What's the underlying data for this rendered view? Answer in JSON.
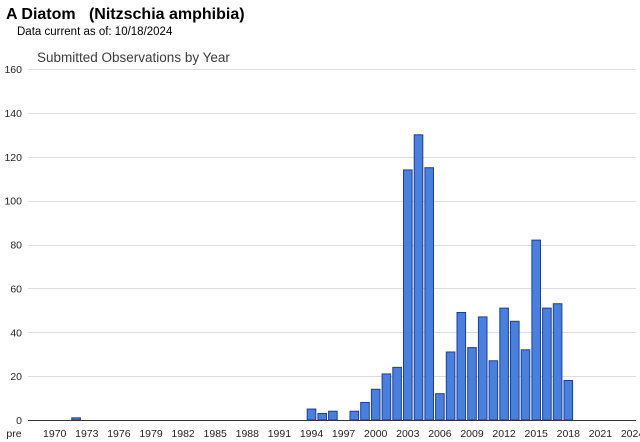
{
  "header": {
    "species_title": "A Diatom   (Nitzschia amphibia)",
    "data_current": "Data current as of: 10/18/2024"
  },
  "chart_data": {
    "type": "bar",
    "title": "Submitted Observations by Year",
    "xlabel": "",
    "ylabel": "",
    "ylim": [
      0,
      160
    ],
    "y_ticks": [
      0,
      20,
      40,
      60,
      80,
      100,
      120,
      140,
      160
    ],
    "grid": true,
    "legend": "none",
    "bar_color": "#4a7fdc",
    "bar_stroke": "#1a3f9a",
    "x_tick_labels": [
      "pre",
      "1970",
      "1973",
      "1976",
      "1979",
      "1982",
      "1985",
      "1988",
      "1991",
      "1994",
      "1997",
      "2000",
      "2003",
      "2006",
      "2009",
      "2012",
      "2015",
      "2018",
      "2021",
      "2024"
    ],
    "categories": [
      "pre",
      "1970",
      "1971",
      "1972",
      "1973",
      "1974",
      "1975",
      "1976",
      "1977",
      "1978",
      "1979",
      "1980",
      "1981",
      "1982",
      "1983",
      "1984",
      "1985",
      "1986",
      "1987",
      "1988",
      "1989",
      "1990",
      "1991",
      "1992",
      "1993",
      "1994",
      "1995",
      "1996",
      "1997",
      "1998",
      "1999",
      "2000",
      "2001",
      "2002",
      "2003",
      "2004",
      "2005",
      "2006",
      "2007",
      "2008",
      "2009",
      "2010",
      "2011",
      "2012",
      "2013",
      "2014",
      "2015",
      "2016",
      "2017",
      "2018",
      "2019",
      "2020",
      "2021",
      "2022",
      "2023",
      "2024"
    ],
    "values": [
      0,
      0,
      0,
      1,
      0,
      0,
      0,
      0,
      0,
      0,
      0,
      0,
      0,
      0,
      0,
      0,
      0,
      0,
      0,
      0,
      0,
      0,
      0,
      0,
      0,
      5,
      3,
      4,
      0,
      4,
      8,
      14,
      21,
      24,
      114,
      130,
      115,
      12,
      31,
      49,
      33,
      47,
      27,
      51,
      45,
      32,
      82,
      51,
      53,
      18,
      0,
      0,
      0,
      0,
      0,
      0
    ]
  }
}
